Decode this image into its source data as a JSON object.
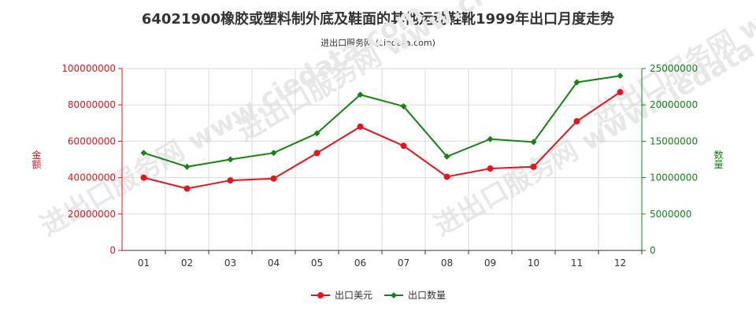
{
  "title": "64021900橡胶或塑料制外底及鞋面的其他运动鞋靴1999年出口月度走势",
  "subtitle": "进出口服务网 (ciedata.com)",
  "watermark": "进出口服务网 www.ciedata.com",
  "chart_data": {
    "type": "line",
    "x": [
      "01",
      "02",
      "03",
      "04",
      "05",
      "06",
      "07",
      "08",
      "09",
      "10",
      "11",
      "12"
    ],
    "y_left": {
      "label": "金额",
      "ylim": [
        0,
        100000000
      ],
      "ticks": [
        0,
        20000000,
        40000000,
        60000000,
        80000000,
        100000000
      ],
      "color": "#e8141c"
    },
    "y_right": {
      "label": "数量",
      "ylim": [
        0,
        25000000
      ],
      "ticks": [
        0,
        5000000,
        10000000,
        15000000,
        20000000,
        25000000
      ],
      "color": "#138413"
    },
    "series": [
      {
        "name": "出口美元",
        "axis": "left",
        "color": "#e8141c",
        "values": [
          40000000,
          34000000,
          38500000,
          39500000,
          53500000,
          68000000,
          57500000,
          40500000,
          45000000,
          46000000,
          71000000,
          87000000
        ]
      },
      {
        "name": "出口数量",
        "axis": "right",
        "color": "#138413",
        "values": [
          13400000,
          11500000,
          12500000,
          13400000,
          16100000,
          21400000,
          19800000,
          12900000,
          15300000,
          14900000,
          23100000,
          24000000
        ]
      }
    ],
    "grid": true,
    "legend": "bottom-center"
  }
}
